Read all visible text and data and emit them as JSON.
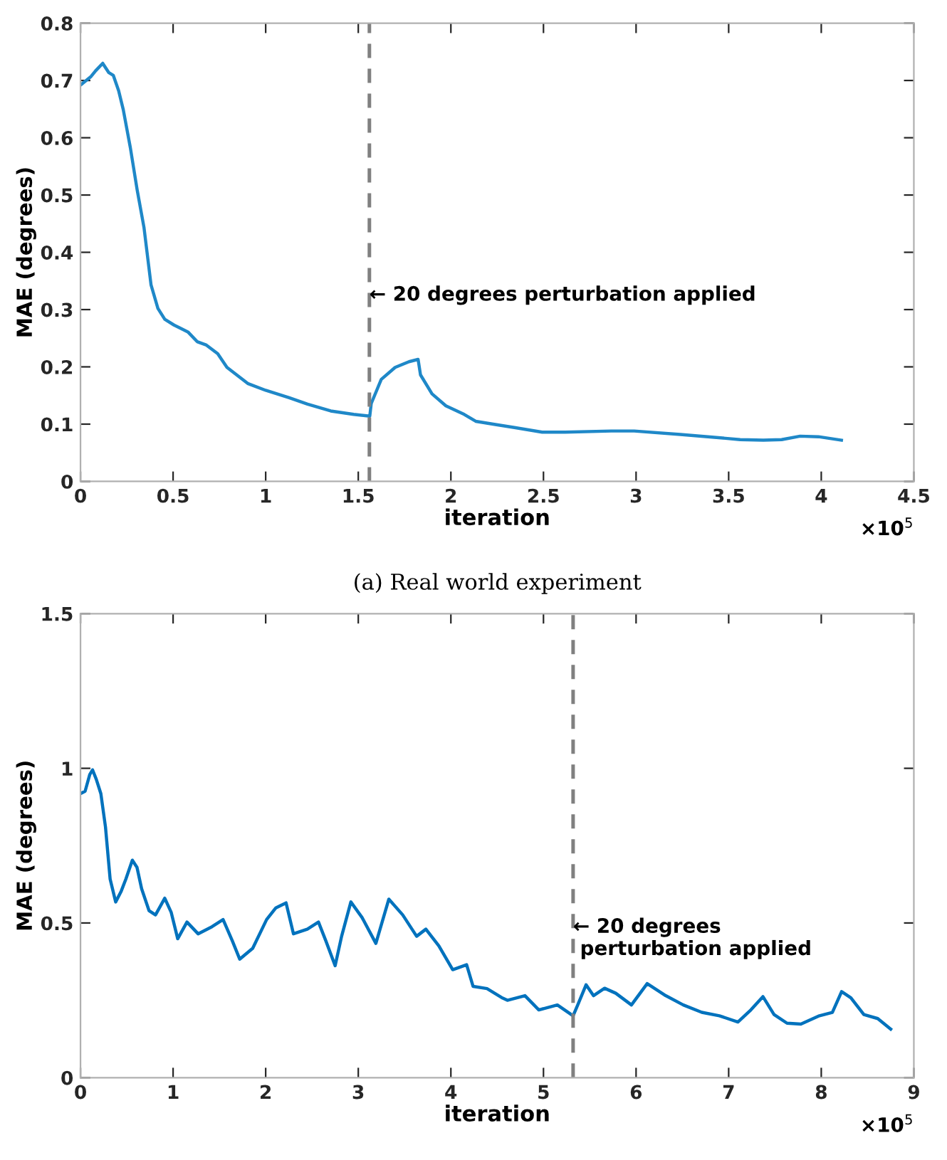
{
  "chart_data": [
    {
      "type": "line",
      "xlabel": "iteration",
      "ylabel": "MAE (degrees)",
      "xlim": [
        0,
        4.5
      ],
      "ylim": [
        0,
        0.8
      ],
      "xticks": [
        0,
        0.5,
        1,
        1.5,
        2,
        2.5,
        3,
        3.5,
        4,
        4.5
      ],
      "yticks": [
        0,
        0.1,
        0.2,
        0.3,
        0.4,
        0.5,
        0.6,
        0.7,
        0.8
      ],
      "grid": false,
      "legend": false,
      "series": [
        {
          "color": "#1f88c8",
          "x": [
            0,
            0.057,
            0.082,
            0.12,
            0.152,
            0.177,
            0.206,
            0.231,
            0.269,
            0.306,
            0.343,
            0.381,
            0.418,
            0.455,
            0.505,
            0.58,
            0.63,
            0.68,
            0.741,
            0.791,
            0.903,
            1.0,
            1.127,
            1.226,
            1.351,
            1.475,
            1.562,
            1.57,
            1.624,
            1.699,
            1.774,
            1.823,
            1.836,
            1.898,
            1.973,
            2.072,
            2.134,
            2.246,
            2.343,
            2.493,
            2.617,
            2.866,
            2.99,
            3.239,
            3.388,
            3.562,
            3.687,
            3.786,
            3.886,
            3.985,
            4.109
          ],
          "values": [
            0.692,
            0.707,
            0.717,
            0.73,
            0.714,
            0.709,
            0.682,
            0.649,
            0.583,
            0.509,
            0.443,
            0.343,
            0.302,
            0.283,
            0.273,
            0.261,
            0.244,
            0.238,
            0.223,
            0.199,
            0.171,
            0.159,
            0.146,
            0.135,
            0.123,
            0.117,
            0.114,
            0.136,
            0.178,
            0.199,
            0.209,
            0.213,
            0.186,
            0.153,
            0.132,
            0.117,
            0.105,
            0.099,
            0.094,
            0.086,
            0.086,
            0.088,
            0.088,
            0.082,
            0.078,
            0.073,
            0.072,
            0.073,
            0.079,
            0.078,
            0.072
          ]
        }
      ],
      "ref_lines": [
        {
          "axis": "x",
          "value": 1.56,
          "color": "#808080",
          "line_style": "dashed"
        }
      ],
      "annotations": [
        "×10$^{5}$",
        "(a) Real world experiment",
        {
          "text": "← 20 degrees perturbation applied",
          "x": 1.56,
          "y": 0.325
        }
      ]
    },
    {
      "type": "line",
      "xlabel": "iteration",
      "ylabel": "MAE (degrees)",
      "xlim": [
        0,
        9
      ],
      "ylim": [
        0,
        1.5
      ],
      "xticks": [
        0,
        1,
        2,
        3,
        4,
        5,
        6,
        7,
        8,
        9
      ],
      "yticks": [
        0,
        0.5,
        1,
        1.5
      ],
      "grid": false,
      "legend": false,
      "series": [
        {
          "color": "#0072bd",
          "x": [
            0,
            0.05,
            0.1,
            0.13,
            0.17,
            0.22,
            0.27,
            0.32,
            0.38,
            0.44,
            0.49,
            0.56,
            0.61,
            0.66,
            0.74,
            0.81,
            0.91,
            0.98,
            1.05,
            1.15,
            1.27,
            1.42,
            1.54,
            1.64,
            1.72,
            1.86,
            2.01,
            2.11,
            2.22,
            2.3,
            2.45,
            2.57,
            2.65,
            2.75,
            2.82,
            2.92,
            3.04,
            3.19,
            3.33,
            3.48,
            3.63,
            3.73,
            3.87,
            4.02,
            4.17,
            4.24,
            4.39,
            4.56,
            4.61,
            4.8,
            4.95,
            5.15,
            5.32,
            5.37,
            5.46,
            5.54,
            5.66,
            5.78,
            5.95,
            6.12,
            6.32,
            6.51,
            6.71,
            6.9,
            7.1,
            7.24,
            7.37,
            7.49,
            7.63,
            7.78,
            7.98,
            8.12,
            8.22,
            8.32,
            8.46,
            8.61,
            8.75
          ],
          "values": [
            0.918,
            0.926,
            0.98,
            0.995,
            0.965,
            0.918,
            0.81,
            0.642,
            0.568,
            0.603,
            0.642,
            0.703,
            0.68,
            0.611,
            0.54,
            0.526,
            0.58,
            0.534,
            0.449,
            0.503,
            0.465,
            0.488,
            0.511,
            0.442,
            0.383,
            0.418,
            0.511,
            0.549,
            0.565,
            0.465,
            0.48,
            0.503,
            0.442,
            0.362,
            0.457,
            0.568,
            0.518,
            0.434,
            0.577,
            0.526,
            0.457,
            0.48,
            0.426,
            0.349,
            0.365,
            0.295,
            0.288,
            0.257,
            0.25,
            0.265,
            0.219,
            0.235,
            0.2,
            0.235,
            0.3,
            0.265,
            0.289,
            0.273,
            0.235,
            0.304,
            0.265,
            0.235,
            0.211,
            0.2,
            0.18,
            0.219,
            0.262,
            0.204,
            0.176,
            0.173,
            0.2,
            0.211,
            0.278,
            0.258,
            0.204,
            0.191,
            0.157
          ]
        }
      ],
      "ref_lines": [
        {
          "axis": "x",
          "value": 5.32,
          "color": "#808080",
          "line_style": "dashed"
        }
      ],
      "annotations": [
        "×10$^{5}$",
        {
          "text": "← 20 degrees\n perturbation applied",
          "x": 5.32,
          "y": 0.45
        }
      ]
    }
  ]
}
